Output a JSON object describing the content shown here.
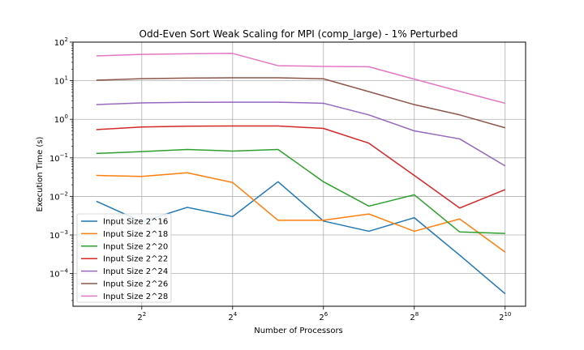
{
  "chart_data": {
    "type": "line",
    "title": "Odd-Even Sort Weak Scaling for MPI (comp_large) - 1% Perturbed",
    "xlabel": "Number of Processors",
    "ylabel": "Execution Time (s)",
    "x_scale": "log2",
    "y_scale": "log10",
    "grid": true,
    "legend_position": "lower-left",
    "x": [
      2,
      4,
      8,
      16,
      32,
      64,
      128,
      256,
      512,
      1024
    ],
    "xlim": [
      1.4,
      1400
    ],
    "ylim": [
      1.42e-05,
      100
    ],
    "x_ticks": [
      {
        "value": 4,
        "base": "2",
        "exp": "2"
      },
      {
        "value": 16,
        "base": "2",
        "exp": "4"
      },
      {
        "value": 64,
        "base": "2",
        "exp": "6"
      },
      {
        "value": 256,
        "base": "2",
        "exp": "8"
      },
      {
        "value": 1024,
        "base": "2",
        "exp": "10"
      }
    ],
    "y_ticks": [
      {
        "value": 0.0001,
        "base": "10",
        "exp": "−4"
      },
      {
        "value": 0.001,
        "base": "10",
        "exp": "−3"
      },
      {
        "value": 0.01,
        "base": "10",
        "exp": "−2"
      },
      {
        "value": 0.1,
        "base": "10",
        "exp": "−1"
      },
      {
        "value": 1,
        "base": "10",
        "exp": "0"
      },
      {
        "value": 10,
        "base": "10",
        "exp": "1"
      },
      {
        "value": 100,
        "base": "10",
        "exp": "2"
      }
    ],
    "series": [
      {
        "name": "Input Size 2^16",
        "color": "#1f77b4",
        "values": [
          0.0075,
          0.0022,
          0.0052,
          0.003,
          0.024,
          0.0023,
          0.00125,
          0.0028,
          0.0003,
          3e-05
        ]
      },
      {
        "name": "Input Size 2^18",
        "color": "#ff7f0e",
        "values": [
          0.035,
          0.033,
          0.041,
          0.023,
          0.0024,
          0.0024,
          0.0035,
          0.00125,
          0.0026,
          0.00036
        ]
      },
      {
        "name": "Input Size 2^20",
        "color": "#2ca02c",
        "values": [
          0.13,
          0.145,
          0.165,
          0.15,
          0.165,
          0.024,
          0.0056,
          0.011,
          0.0012,
          0.0011
        ]
      },
      {
        "name": "Input Size 2^22",
        "color": "#d62728",
        "values": [
          0.54,
          0.63,
          0.66,
          0.67,
          0.67,
          0.58,
          0.24,
          0.035,
          0.005,
          0.015
        ]
      },
      {
        "name": "Input Size 2^24",
        "color": "#9467bd",
        "values": [
          2.4,
          2.65,
          2.75,
          2.78,
          2.78,
          2.6,
          1.3,
          0.5,
          0.31,
          0.062
        ]
      },
      {
        "name": "Input Size 2^26",
        "color": "#8c564b",
        "values": [
          10.3,
          11.3,
          11.7,
          11.9,
          11.9,
          11.2,
          5.2,
          2.4,
          1.3,
          0.6
        ]
      },
      {
        "name": "Input Size 2^28",
        "color": "#e377c2",
        "values": [
          44,
          48,
          50,
          51,
          24.5,
          23.5,
          23,
          11,
          5.3,
          2.6
        ]
      }
    ]
  }
}
